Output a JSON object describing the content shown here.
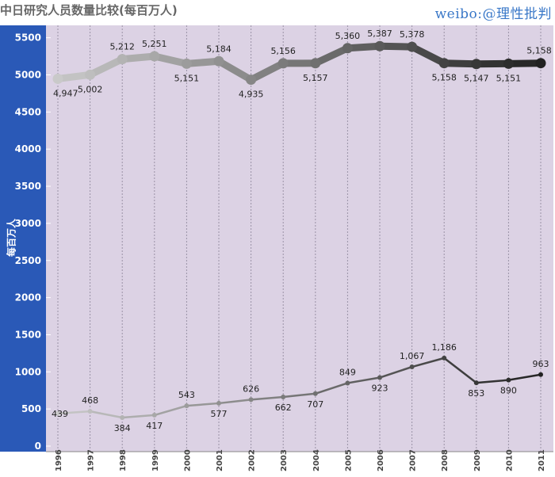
{
  "title": "中日研究人员数量比较(每百万人)",
  "watermark": "weibo:@理性批判",
  "colors": {
    "plot_bg": "#dcd2e4",
    "y_bar": "#2a59b7",
    "grid": "#9a92a6",
    "series_light": "#c9c9c9",
    "series_dark": "#222222"
  },
  "chart_data": {
    "type": "line",
    "title": "中日研究人员数量比较(每百万人)",
    "ylabel": "每百万人",
    "xlabel": "",
    "x": [
      "1996",
      "1997",
      "1998",
      "1999",
      "2000",
      "2001",
      "2002",
      "2003",
      "2004",
      "2005",
      "2006",
      "2007",
      "2008",
      "2009",
      "2010",
      "2011"
    ],
    "ylim": [
      0,
      5600
    ],
    "yticks": [
      0,
      500,
      1000,
      1500,
      2000,
      2500,
      3000,
      3500,
      4000,
      4500,
      5000,
      5500
    ],
    "grid": true,
    "series": [
      {
        "values": [
          4947,
          5002,
          5212,
          5251,
          5151,
          5184,
          4935,
          5156,
          5157,
          5360,
          5387,
          5378,
          5158,
          5147,
          5151,
          5158
        ],
        "labels": [
          "4,947",
          "5,002",
          "5,212",
          "5,251",
          "5,151",
          "5,184",
          "4,935",
          "5,156",
          "5,157",
          "5,360",
          "5,387",
          "5,378",
          "5,158",
          "5,147",
          "5,151",
          "5,158"
        ]
      },
      {
        "values": [
          439,
          468,
          384,
          417,
          543,
          577,
          626,
          662,
          707,
          849,
          923,
          1067,
          1186,
          853,
          890,
          963
        ],
        "labels": [
          "439",
          "468",
          "384",
          "417",
          "543",
          "577",
          "626",
          "662",
          "707",
          "849",
          "923",
          "1,067",
          "1,186",
          "853",
          "890",
          "963"
        ]
      }
    ]
  }
}
